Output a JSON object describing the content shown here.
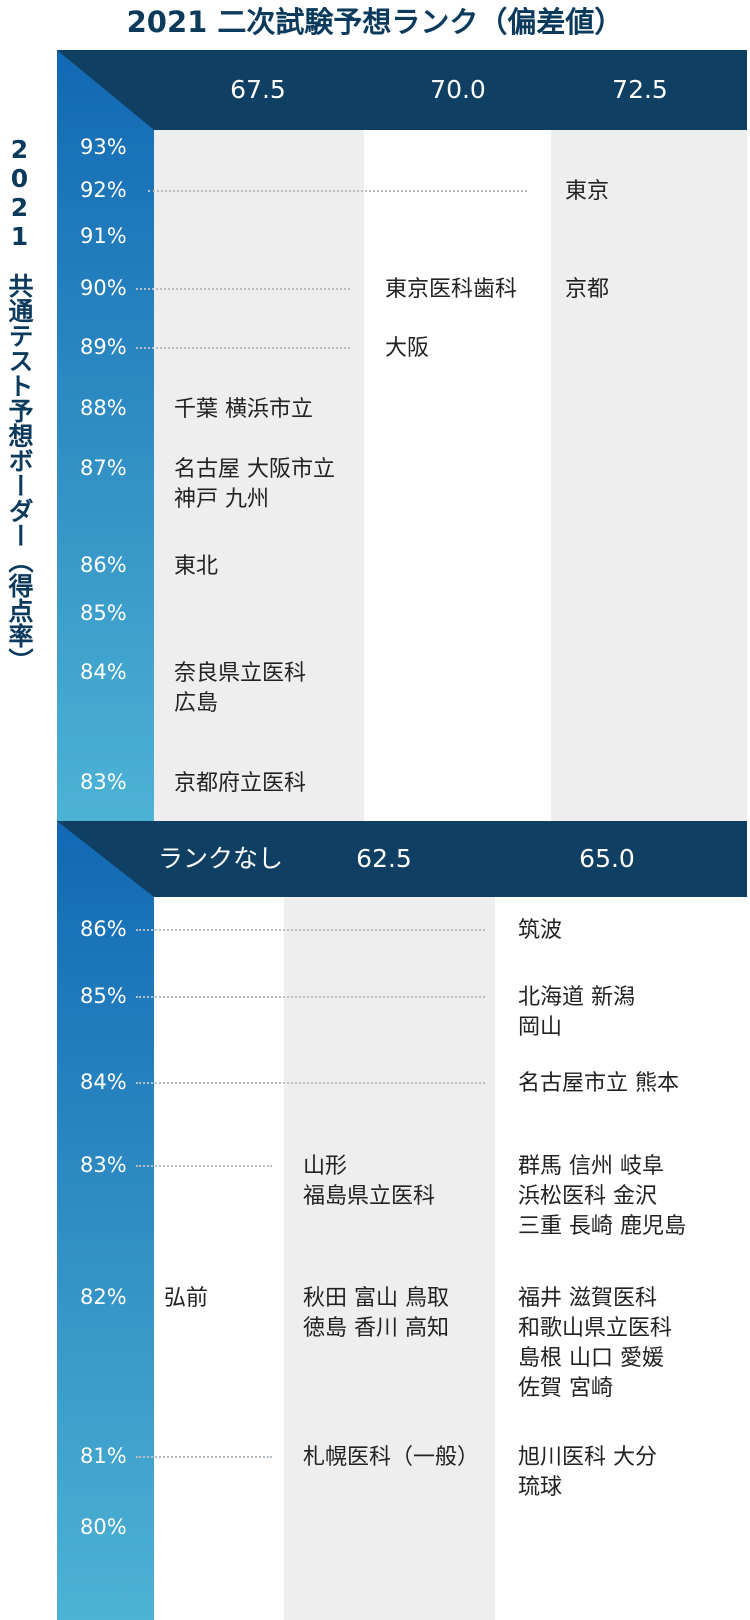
{
  "title": "2021 二次試験予想ランク（偏差値）",
  "y_axis_label": {
    "year": "2021",
    "text": "共通テスト予想ボーダー（得点率）"
  },
  "colors": {
    "header": "#0f3f62",
    "band_top": "#1268b3",
    "band_bottom": "#4db3d4",
    "title": "#0b3a5c",
    "column_shade": "#eeeeee"
  },
  "top_section": {
    "rank_headers": [
      "67.5",
      "70.0",
      "72.5"
    ],
    "percent_labels": [
      "93%",
      "92%",
      "91%",
      "90%",
      "89%",
      "88%",
      "87%",
      "86%",
      "85%",
      "84%",
      "83%"
    ],
    "entries": {
      "67.5": [
        {
          "percent": "88%",
          "lines": [
            "千葉  横浜市立"
          ]
        },
        {
          "percent": "87%",
          "lines": [
            "名古屋  大阪市立",
            "神戸  九州"
          ]
        },
        {
          "percent": "86%",
          "lines": [
            "東北"
          ]
        },
        {
          "percent": "84%",
          "lines": [
            "奈良県立医科",
            "広島"
          ]
        },
        {
          "percent": "83%",
          "lines": [
            "京都府立医科"
          ]
        }
      ],
      "70.0": [
        {
          "percent": "90%",
          "lines": [
            "東京医科歯科"
          ]
        },
        {
          "percent": "89%",
          "lines": [
            "大阪"
          ]
        }
      ],
      "72.5": [
        {
          "percent": "92%",
          "lines": [
            "東京"
          ]
        },
        {
          "percent": "90%",
          "lines": [
            "京都"
          ]
        }
      ]
    }
  },
  "bottom_section": {
    "rank_headers": [
      "ランクなし",
      "62.5",
      "65.0"
    ],
    "percent_labels": [
      "86%",
      "85%",
      "84%",
      "83%",
      "82%",
      "81%",
      "80%"
    ],
    "entries": {
      "ランクなし": [
        {
          "percent": "82%",
          "lines": [
            "弘前"
          ]
        }
      ],
      "62.5": [
        {
          "percent": "83%",
          "lines": [
            "山形",
            "福島県立医科"
          ]
        },
        {
          "percent": "82%",
          "lines": [
            "秋田  富山  鳥取",
            "徳島  香川  高知"
          ]
        },
        {
          "percent": "81%",
          "lines": [
            "札幌医科（一般）"
          ]
        }
      ],
      "65.0": [
        {
          "percent": "86%",
          "lines": [
            "筑波"
          ]
        },
        {
          "percent": "85%",
          "lines": [
            "北海道 新潟",
            "岡山"
          ]
        },
        {
          "percent": "84%",
          "lines": [
            "名古屋市立  熊本"
          ]
        },
        {
          "percent": "83%",
          "lines": [
            "群馬  信州  岐阜",
            "浜松医科  金沢",
            "三重  長崎  鹿児島"
          ]
        },
        {
          "percent": "82%",
          "lines": [
            "福井  滋賀医科",
            "和歌山県立医科",
            "島根  山口  愛媛",
            "佐賀  宮崎"
          ]
        },
        {
          "percent": "81%",
          "lines": [
            "旭川医科  大分",
            "琉球"
          ]
        }
      ]
    }
  }
}
